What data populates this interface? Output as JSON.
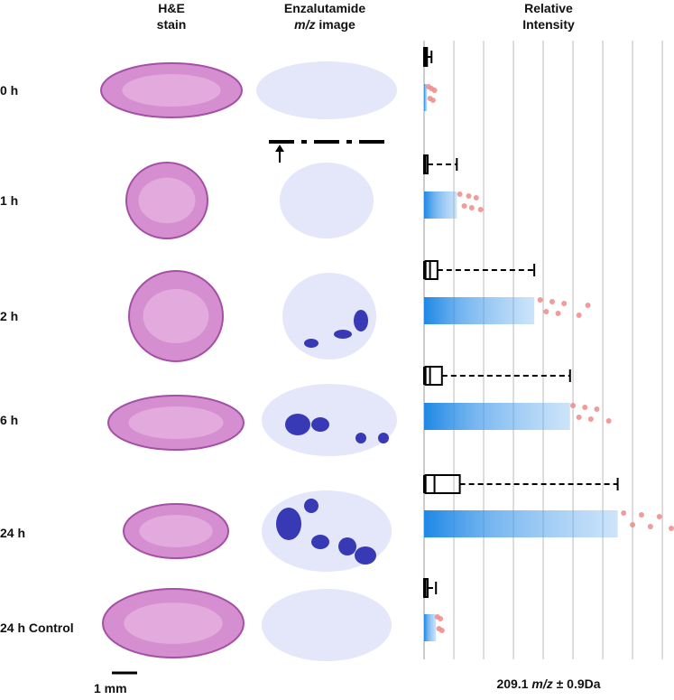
{
  "chart_data": {
    "type": "box-strip",
    "headers": {
      "he": [
        "H&E",
        "stain"
      ],
      "msi": [
        "Enzalutamide",
        "m/z",
        "image"
      ],
      "intensity": [
        "Relative",
        "Intensity"
      ]
    },
    "categories": [
      "0 h",
      "1 h",
      "2 h",
      "6 h",
      "24 h",
      "24 h Control"
    ],
    "series": [
      {
        "name": "box",
        "color": "#000000",
        "values": [
          {
            "low": 0,
            "q1": 0,
            "median": 0.05,
            "q3": 0.1,
            "high": 0.25
          },
          {
            "low": 0,
            "q1": 0,
            "median": 0.05,
            "q3": 0.12,
            "high": 1.1
          },
          {
            "low": 0,
            "q1": 0.05,
            "median": 0.2,
            "q3": 0.45,
            "high": 3.7
          },
          {
            "low": 0,
            "q1": 0.05,
            "median": 0.2,
            "q3": 0.6,
            "high": 4.9
          },
          {
            "low": 0,
            "q1": 0.05,
            "median": 0.35,
            "q3": 1.2,
            "high": 6.5
          },
          {
            "low": 0,
            "q1": 0,
            "median": 0.05,
            "q3": 0.12,
            "high": 0.4
          }
        ]
      },
      {
        "name": "points",
        "color": "#1e88e5",
        "values": [
          0.1,
          1.1,
          3.7,
          4.9,
          6.5,
          0.4
        ]
      },
      {
        "name": "outliers",
        "color": "#ef8a8a",
        "values": [
          [
            0.15,
            0.2,
            0.25,
            0.3,
            0.35
          ],
          [
            1.2,
            1.35,
            1.5,
            1.6,
            1.75,
            1.9
          ],
          [
            3.9,
            4.1,
            4.3,
            4.5,
            4.7,
            5.2,
            5.5
          ],
          [
            5.0,
            5.2,
            5.4,
            5.6,
            5.8,
            6.2
          ],
          [
            6.7,
            7.0,
            7.3,
            7.6,
            7.9,
            8.3
          ],
          [
            0.45,
            0.5,
            0.55,
            0.6
          ]
        ]
      }
    ],
    "xlim": [
      0,
      8.3
    ],
    "grid_lines": [
      1,
      2,
      3,
      4,
      5,
      6,
      7,
      8
    ],
    "grid": true,
    "scale_label": "1 mm",
    "axis_label": [
      "209.1",
      "m/z",
      "± 0.9Da"
    ]
  }
}
